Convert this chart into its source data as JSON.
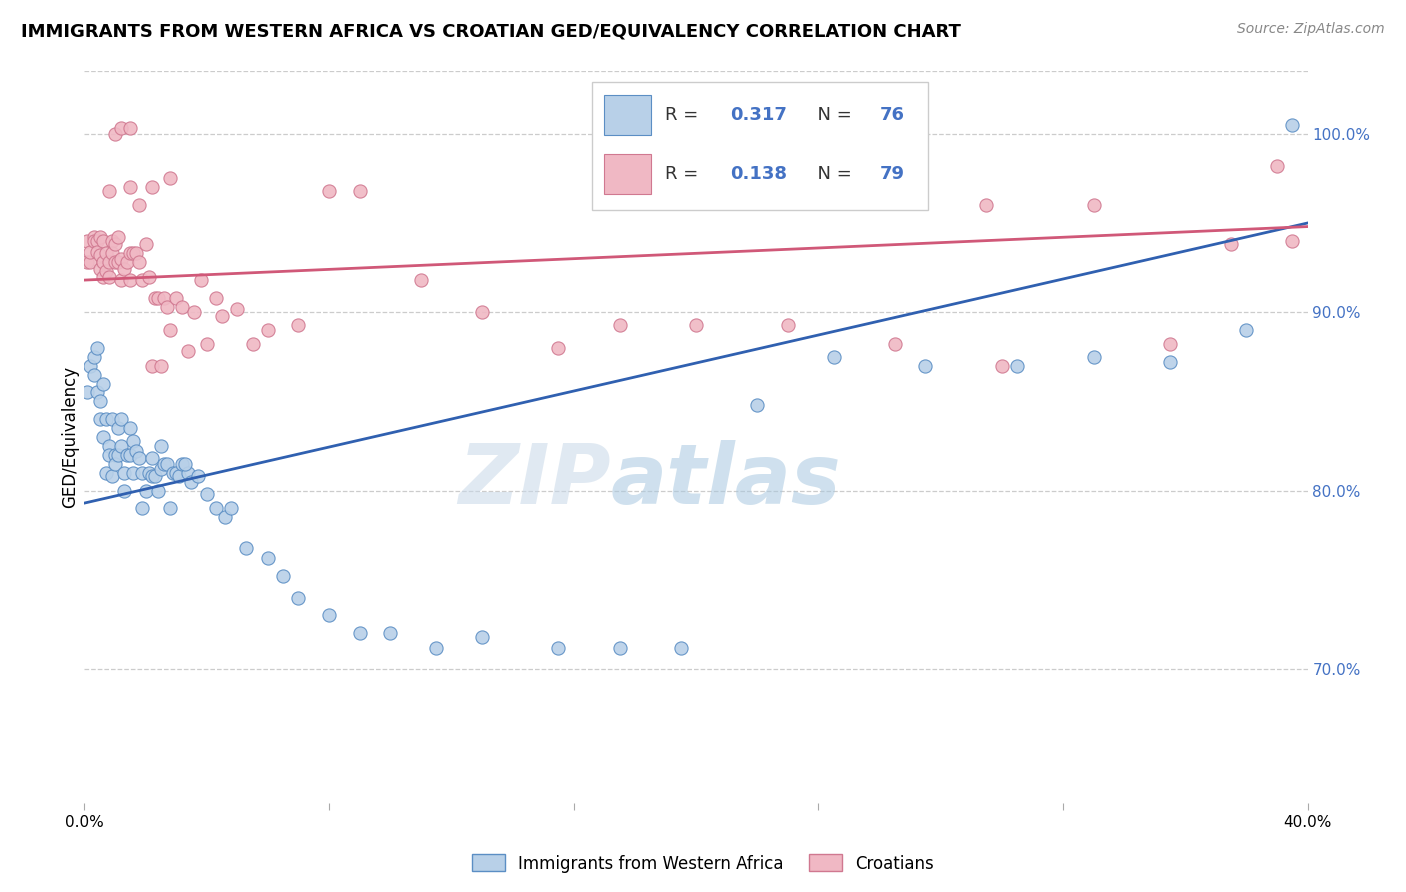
{
  "title": "IMMIGRANTS FROM WESTERN AFRICA VS CROATIAN GED/EQUIVALENCY CORRELATION CHART",
  "source": "Source: ZipAtlas.com",
  "ylabel": "GED/Equivalency",
  "xlim": [
    0.0,
    0.4
  ],
  "ylim": [
    0.625,
    1.035
  ],
  "x_ticks": [
    0.0,
    0.08,
    0.16,
    0.24,
    0.32,
    0.4
  ],
  "x_tick_labels": [
    "0.0%",
    "",
    "",
    "",
    "",
    "40.0%"
  ],
  "y_ticks": [
    0.7,
    0.8,
    0.9,
    1.0
  ],
  "y_tick_labels": [
    "70.0%",
    "80.0%",
    "90.0%",
    "100.0%"
  ],
  "blue_fill": "#b8d0e8",
  "blue_edge": "#5b8ec4",
  "pink_fill": "#f0b8c4",
  "pink_edge": "#d07890",
  "blue_line_color": "#3060b0",
  "pink_line_color": "#d05878",
  "watermark_text": "ZIP",
  "watermark_text2": "atlas",
  "legend_r_blue": "0.317",
  "legend_n_blue": "76",
  "legend_r_pink": "0.138",
  "legend_n_pink": "79",
  "blue_line": {
    "x0": 0.0,
    "x1": 0.4,
    "y0": 0.793,
    "y1": 0.95
  },
  "pink_line": {
    "x0": 0.0,
    "x1": 0.4,
    "y0": 0.918,
    "y1": 0.948
  },
  "blue_x": [
    0.001,
    0.002,
    0.003,
    0.003,
    0.004,
    0.004,
    0.005,
    0.005,
    0.006,
    0.006,
    0.007,
    0.007,
    0.008,
    0.008,
    0.009,
    0.009,
    0.01,
    0.01,
    0.011,
    0.011,
    0.012,
    0.012,
    0.013,
    0.013,
    0.014,
    0.015,
    0.015,
    0.016,
    0.016,
    0.017,
    0.018,
    0.019,
    0.019,
    0.02,
    0.021,
    0.022,
    0.022,
    0.023,
    0.024,
    0.025,
    0.026,
    0.027,
    0.028,
    0.029,
    0.03,
    0.031,
    0.032,
    0.034,
    0.035,
    0.037,
    0.04,
    0.043,
    0.046,
    0.048,
    0.053,
    0.06,
    0.065,
    0.07,
    0.08,
    0.09,
    0.1,
    0.115,
    0.13,
    0.155,
    0.175,
    0.195,
    0.22,
    0.245,
    0.275,
    0.305,
    0.33,
    0.355,
    0.38,
    0.395,
    0.025,
    0.033
  ],
  "blue_y": [
    0.855,
    0.87,
    0.865,
    0.875,
    0.855,
    0.88,
    0.85,
    0.84,
    0.86,
    0.83,
    0.81,
    0.84,
    0.825,
    0.82,
    0.84,
    0.808,
    0.82,
    0.815,
    0.835,
    0.82,
    0.84,
    0.825,
    0.81,
    0.8,
    0.82,
    0.835,
    0.82,
    0.828,
    0.81,
    0.822,
    0.818,
    0.81,
    0.79,
    0.8,
    0.81,
    0.808,
    0.818,
    0.808,
    0.8,
    0.812,
    0.815,
    0.815,
    0.79,
    0.81,
    0.81,
    0.808,
    0.815,
    0.81,
    0.805,
    0.808,
    0.798,
    0.79,
    0.785,
    0.79,
    0.768,
    0.762,
    0.752,
    0.74,
    0.73,
    0.72,
    0.72,
    0.712,
    0.718,
    0.712,
    0.712,
    0.712,
    0.848,
    0.875,
    0.87,
    0.87,
    0.875,
    0.872,
    0.89,
    1.005,
    0.825,
    0.815
  ],
  "pink_x": [
    0.001,
    0.001,
    0.002,
    0.002,
    0.003,
    0.003,
    0.004,
    0.004,
    0.005,
    0.005,
    0.005,
    0.006,
    0.006,
    0.006,
    0.007,
    0.007,
    0.008,
    0.008,
    0.009,
    0.009,
    0.01,
    0.01,
    0.011,
    0.011,
    0.012,
    0.012,
    0.013,
    0.014,
    0.015,
    0.015,
    0.016,
    0.017,
    0.018,
    0.019,
    0.02,
    0.021,
    0.022,
    0.023,
    0.024,
    0.025,
    0.026,
    0.027,
    0.028,
    0.03,
    0.032,
    0.034,
    0.036,
    0.038,
    0.04,
    0.043,
    0.045,
    0.05,
    0.055,
    0.06,
    0.07,
    0.08,
    0.09,
    0.11,
    0.13,
    0.155,
    0.175,
    0.2,
    0.23,
    0.265,
    0.3,
    0.33,
    0.355,
    0.375,
    0.39,
    0.395,
    0.008,
    0.01,
    0.012,
    0.015,
    0.018,
    0.295,
    0.015,
    0.022,
    0.028
  ],
  "pink_y": [
    0.928,
    0.94,
    0.928,
    0.934,
    0.942,
    0.94,
    0.94,
    0.934,
    0.932,
    0.942,
    0.924,
    0.928,
    0.92,
    0.94,
    0.933,
    0.923,
    0.928,
    0.92,
    0.94,
    0.933,
    0.938,
    0.928,
    0.942,
    0.928,
    0.918,
    0.93,
    0.924,
    0.928,
    0.933,
    0.918,
    0.933,
    0.933,
    0.928,
    0.918,
    0.938,
    0.92,
    0.87,
    0.908,
    0.908,
    0.87,
    0.908,
    0.903,
    0.89,
    0.908,
    0.903,
    0.878,
    0.9,
    0.918,
    0.882,
    0.908,
    0.898,
    0.902,
    0.882,
    0.89,
    0.893,
    0.968,
    0.968,
    0.918,
    0.9,
    0.88,
    0.893,
    0.893,
    0.893,
    0.882,
    0.87,
    0.96,
    0.882,
    0.938,
    0.982,
    0.94,
    0.968,
    1.0,
    1.003,
    0.97,
    0.96,
    0.96,
    1.003,
    0.97,
    0.975
  ]
}
